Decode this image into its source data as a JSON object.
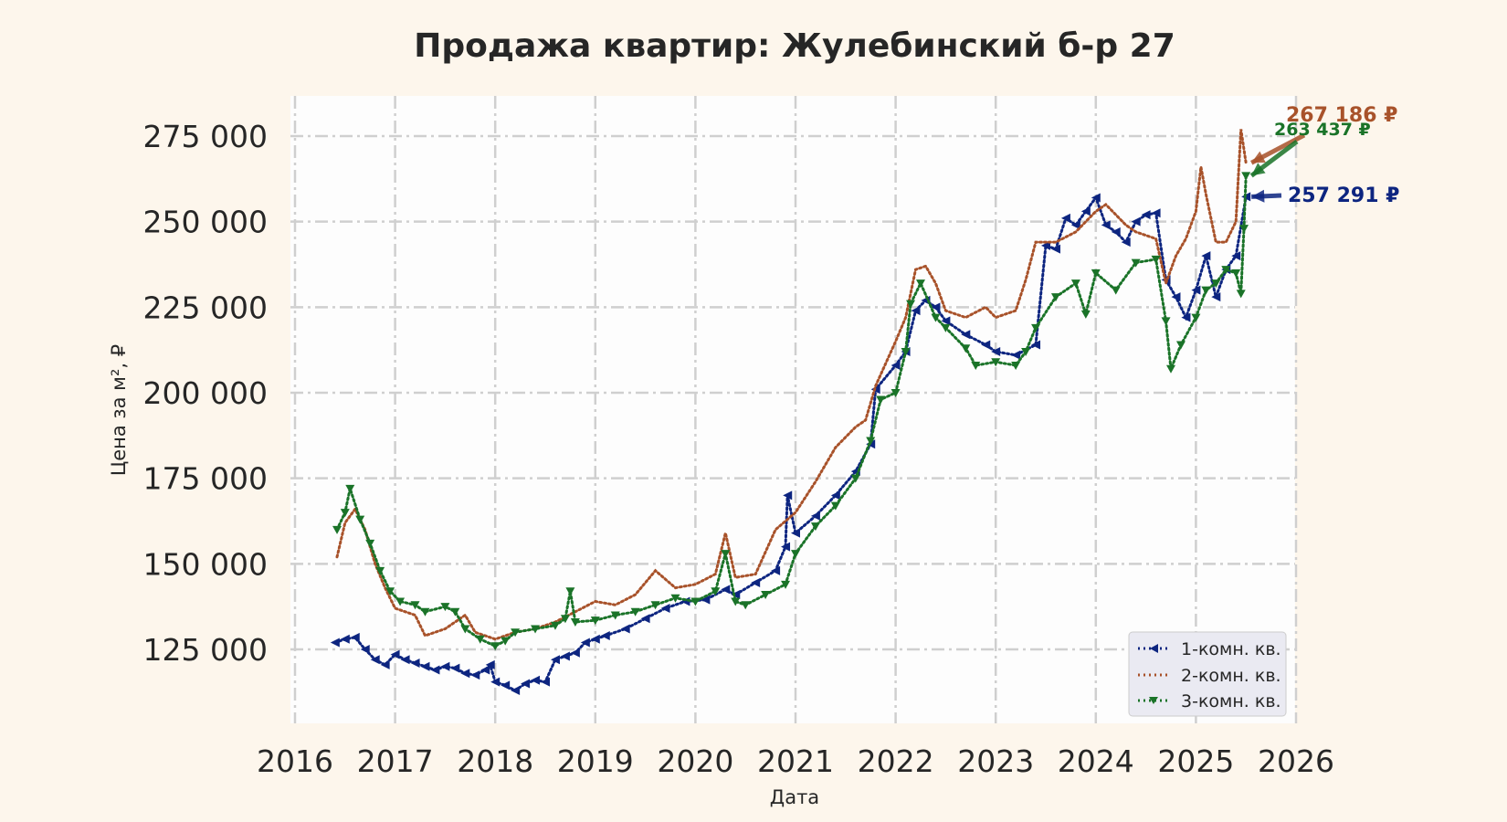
{
  "chart_data": {
    "type": "line",
    "title": "Продажа квартир: Жулебинский б-р 27",
    "xlabel": "Дата",
    "ylabel": "Цена за м², ₽",
    "xlim": [
      2016,
      2026
    ],
    "ylim": [
      104000,
      280000
    ],
    "x_ticks": [
      "2016",
      "2017",
      "2018",
      "2019",
      "2020",
      "2021",
      "2022",
      "2023",
      "2024",
      "2025",
      "2026"
    ],
    "y_ticks": [
      {
        "value": 125000,
        "label": "125 000"
      },
      {
        "value": 150000,
        "label": "150 000"
      },
      {
        "value": 175000,
        "label": "175 000"
      },
      {
        "value": 200000,
        "label": "200 000"
      },
      {
        "value": 225000,
        "label": "225 000"
      },
      {
        "value": 250000,
        "label": "250 000"
      },
      {
        "value": 275000,
        "label": "275 000"
      }
    ],
    "grid": true,
    "legend_position": "bottom-right",
    "series": [
      {
        "name": "1-комн. кв.",
        "color": "#0d2580",
        "style": "dotted-markers",
        "end_label": "257 291 ₽",
        "end_value": 257291,
        "points": [
          [
            2016.4,
            127000
          ],
          [
            2016.5,
            128000
          ],
          [
            2016.6,
            128500
          ],
          [
            2016.7,
            125000
          ],
          [
            2016.8,
            122000
          ],
          [
            2016.9,
            120500
          ],
          [
            2017.0,
            123500
          ],
          [
            2017.1,
            122000
          ],
          [
            2017.2,
            121000
          ],
          [
            2017.3,
            120000
          ],
          [
            2017.4,
            119000
          ],
          [
            2017.5,
            120000
          ],
          [
            2017.6,
            119500
          ],
          [
            2017.7,
            118000
          ],
          [
            2017.8,
            117500
          ],
          [
            2017.9,
            119000
          ],
          [
            2017.95,
            120500
          ],
          [
            2018.0,
            115500
          ],
          [
            2018.1,
            114500
          ],
          [
            2018.2,
            113000
          ],
          [
            2018.3,
            115000
          ],
          [
            2018.4,
            116000
          ],
          [
            2018.5,
            115500
          ],
          [
            2018.6,
            122000
          ],
          [
            2018.7,
            123000
          ],
          [
            2018.8,
            124000
          ],
          [
            2018.9,
            127000
          ],
          [
            2019.0,
            128000
          ],
          [
            2019.1,
            129000
          ],
          [
            2019.3,
            131000
          ],
          [
            2019.5,
            134000
          ],
          [
            2019.7,
            137000
          ],
          [
            2019.9,
            139000
          ],
          [
            2020.1,
            139500
          ],
          [
            2020.3,
            142500
          ],
          [
            2020.4,
            141000
          ],
          [
            2020.6,
            144500
          ],
          [
            2020.8,
            148000
          ],
          [
            2020.9,
            155000
          ],
          [
            2020.92,
            170000
          ],
          [
            2021.0,
            159000
          ],
          [
            2021.2,
            164000
          ],
          [
            2021.4,
            170000
          ],
          [
            2021.6,
            177000
          ],
          [
            2021.75,
            185000
          ],
          [
            2021.8,
            201000
          ],
          [
            2022.0,
            208000
          ],
          [
            2022.1,
            212000
          ],
          [
            2022.2,
            224000
          ],
          [
            2022.3,
            227000
          ],
          [
            2022.4,
            225000
          ],
          [
            2022.5,
            221000
          ],
          [
            2022.7,
            217000
          ],
          [
            2022.9,
            214000
          ],
          [
            2023.0,
            212000
          ],
          [
            2023.2,
            211000
          ],
          [
            2023.4,
            214000
          ],
          [
            2023.5,
            243000
          ],
          [
            2023.6,
            242000
          ],
          [
            2023.7,
            251000
          ],
          [
            2023.8,
            249000
          ],
          [
            2023.9,
            253000
          ],
          [
            2024.0,
            257000
          ],
          [
            2024.1,
            249000
          ],
          [
            2024.2,
            247000
          ],
          [
            2024.3,
            244000
          ],
          [
            2024.4,
            250000
          ],
          [
            2024.5,
            252000
          ],
          [
            2024.6,
            252500
          ],
          [
            2024.7,
            233000
          ],
          [
            2024.8,
            228000
          ],
          [
            2024.9,
            222000
          ],
          [
            2025.0,
            230000
          ],
          [
            2025.1,
            240000
          ],
          [
            2025.2,
            228000
          ],
          [
            2025.3,
            236000
          ],
          [
            2025.4,
            240000
          ],
          [
            2025.5,
            257291
          ]
        ]
      },
      {
        "name": "2-комн. кв.",
        "color": "#a8522a",
        "style": "dotted",
        "end_label": "267 186 ₽",
        "end_value": 267186,
        "points": [
          [
            2016.42,
            152000
          ],
          [
            2016.5,
            162000
          ],
          [
            2016.6,
            166000
          ],
          [
            2016.7,
            160000
          ],
          [
            2016.8,
            150000
          ],
          [
            2016.9,
            143000
          ],
          [
            2017.0,
            137000
          ],
          [
            2017.2,
            135000
          ],
          [
            2017.3,
            129000
          ],
          [
            2017.5,
            131000
          ],
          [
            2017.7,
            135000
          ],
          [
            2017.8,
            130000
          ],
          [
            2018.0,
            128000
          ],
          [
            2018.2,
            130000
          ],
          [
            2018.4,
            131000
          ],
          [
            2018.6,
            133000
          ],
          [
            2018.8,
            136000
          ],
          [
            2019.0,
            139000
          ],
          [
            2019.2,
            138000
          ],
          [
            2019.4,
            141000
          ],
          [
            2019.6,
            148000
          ],
          [
            2019.8,
            143000
          ],
          [
            2020.0,
            144000
          ],
          [
            2020.2,
            147000
          ],
          [
            2020.3,
            159000
          ],
          [
            2020.4,
            146000
          ],
          [
            2020.6,
            147000
          ],
          [
            2020.8,
            160000
          ],
          [
            2021.0,
            165000
          ],
          [
            2021.2,
            174000
          ],
          [
            2021.4,
            184000
          ],
          [
            2021.6,
            190000
          ],
          [
            2021.7,
            192000
          ],
          [
            2021.8,
            202000
          ],
          [
            2022.0,
            215000
          ],
          [
            2022.1,
            222000
          ],
          [
            2022.2,
            236000
          ],
          [
            2022.3,
            237000
          ],
          [
            2022.4,
            232000
          ],
          [
            2022.5,
            224000
          ],
          [
            2022.7,
            222000
          ],
          [
            2022.9,
            225000
          ],
          [
            2023.0,
            222000
          ],
          [
            2023.2,
            224000
          ],
          [
            2023.3,
            233000
          ],
          [
            2023.4,
            244000
          ],
          [
            2023.6,
            244000
          ],
          [
            2023.8,
            247000
          ],
          [
            2024.0,
            253000
          ],
          [
            2024.1,
            255000
          ],
          [
            2024.3,
            249000
          ],
          [
            2024.4,
            247000
          ],
          [
            2024.6,
            245000
          ],
          [
            2024.7,
            232000
          ],
          [
            2024.8,
            240000
          ],
          [
            2024.9,
            245000
          ],
          [
            2025.0,
            253000
          ],
          [
            2025.05,
            266000
          ],
          [
            2025.1,
            258000
          ],
          [
            2025.2,
            244000
          ],
          [
            2025.3,
            244000
          ],
          [
            2025.4,
            250000
          ],
          [
            2025.45,
            277000
          ],
          [
            2025.5,
            267186
          ]
        ]
      },
      {
        "name": "3-комн. кв.",
        "color": "#1a7328",
        "style": "dotted-markers",
        "end_label": "263 437 ₽",
        "end_value": 263437,
        "points": [
          [
            2016.42,
            160000
          ],
          [
            2016.5,
            165000
          ],
          [
            2016.55,
            172000
          ],
          [
            2016.65,
            163000
          ],
          [
            2016.75,
            156000
          ],
          [
            2016.85,
            148000
          ],
          [
            2016.95,
            142000
          ],
          [
            2017.05,
            139000
          ],
          [
            2017.2,
            138000
          ],
          [
            2017.3,
            136000
          ],
          [
            2017.5,
            137500
          ],
          [
            2017.6,
            136000
          ],
          [
            2017.7,
            131000
          ],
          [
            2017.85,
            128000
          ],
          [
            2018.0,
            126000
          ],
          [
            2018.1,
            127500
          ],
          [
            2018.2,
            130000
          ],
          [
            2018.4,
            131000
          ],
          [
            2018.6,
            132000
          ],
          [
            2018.7,
            134000
          ],
          [
            2018.75,
            142000
          ],
          [
            2018.8,
            133000
          ],
          [
            2019.0,
            133500
          ],
          [
            2019.2,
            135000
          ],
          [
            2019.4,
            136000
          ],
          [
            2019.6,
            138000
          ],
          [
            2019.8,
            140000
          ],
          [
            2020.0,
            139000
          ],
          [
            2020.2,
            142000
          ],
          [
            2020.3,
            153000
          ],
          [
            2020.4,
            139000
          ],
          [
            2020.5,
            138000
          ],
          [
            2020.7,
            141000
          ],
          [
            2020.9,
            144000
          ],
          [
            2021.0,
            153000
          ],
          [
            2021.2,
            161000
          ],
          [
            2021.4,
            167000
          ],
          [
            2021.6,
            175000
          ],
          [
            2021.75,
            186000
          ],
          [
            2021.85,
            198000
          ],
          [
            2022.0,
            200000
          ],
          [
            2022.1,
            212000
          ],
          [
            2022.15,
            226000
          ],
          [
            2022.25,
            232000
          ],
          [
            2022.4,
            222000
          ],
          [
            2022.5,
            219000
          ],
          [
            2022.7,
            213000
          ],
          [
            2022.8,
            208000
          ],
          [
            2023.0,
            209000
          ],
          [
            2023.2,
            208000
          ],
          [
            2023.3,
            212000
          ],
          [
            2023.4,
            219000
          ],
          [
            2023.6,
            228000
          ],
          [
            2023.8,
            232000
          ],
          [
            2023.9,
            223000
          ],
          [
            2024.0,
            235000
          ],
          [
            2024.2,
            230000
          ],
          [
            2024.4,
            238000
          ],
          [
            2024.6,
            239000
          ],
          [
            2024.7,
            221000
          ],
          [
            2024.75,
            207000
          ],
          [
            2024.85,
            214000
          ],
          [
            2025.0,
            222000
          ],
          [
            2025.1,
            230000
          ],
          [
            2025.2,
            232000
          ],
          [
            2025.3,
            236000
          ],
          [
            2025.4,
            235000
          ],
          [
            2025.45,
            229000
          ],
          [
            2025.48,
            248000
          ],
          [
            2025.5,
            263437
          ]
        ]
      }
    ]
  }
}
